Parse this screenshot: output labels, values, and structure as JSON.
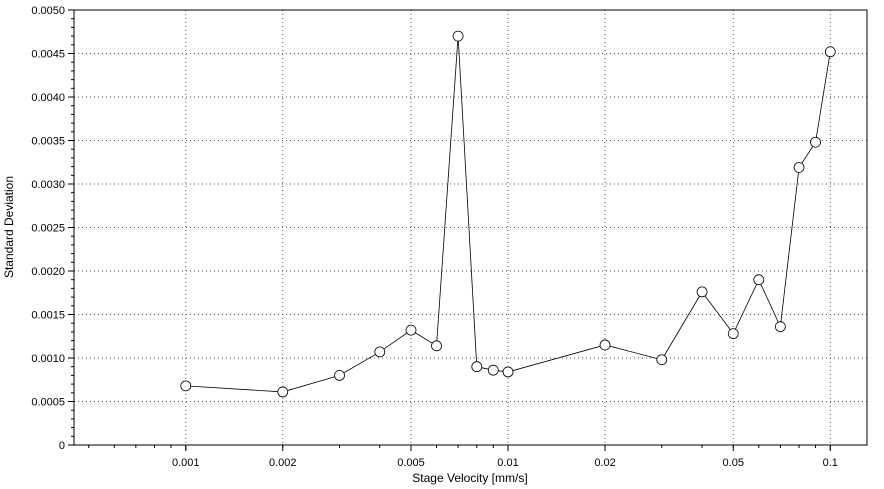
{
  "chart_data": {
    "type": "line",
    "xlabel": "Stage Velocity [mm/s]",
    "ylabel": "Standard Deviation",
    "x_scale": "log",
    "xlim": [
      0.00045,
      0.13
    ],
    "ylim": [
      0,
      0.005
    ],
    "grid": true,
    "x_ticks": [
      {
        "value": 0.001,
        "label": "0.001"
      },
      {
        "value": 0.002,
        "label": "0.002"
      },
      {
        "value": 0.005,
        "label": "0.005"
      },
      {
        "value": 0.01,
        "label": "0.01"
      },
      {
        "value": 0.02,
        "label": "0.02"
      },
      {
        "value": 0.05,
        "label": "0.05"
      },
      {
        "value": 0.1,
        "label": "0.1"
      }
    ],
    "y_ticks": [
      {
        "value": 0,
        "label": "0"
      },
      {
        "value": 0.0005,
        "label": "0.0005"
      },
      {
        "value": 0.001,
        "label": "0.0010"
      },
      {
        "value": 0.0015,
        "label": "0.0015"
      },
      {
        "value": 0.002,
        "label": "0.0020"
      },
      {
        "value": 0.0025,
        "label": "0.0025"
      },
      {
        "value": 0.003,
        "label": "0.0030"
      },
      {
        "value": 0.0035,
        "label": "0.0035"
      },
      {
        "value": 0.004,
        "label": "0.0040"
      },
      {
        "value": 0.0045,
        "label": "0.0045"
      },
      {
        "value": 0.005,
        "label": "0.0050"
      }
    ],
    "series": [
      {
        "line_color": "#000000",
        "marker": "open-circle",
        "x": [
          0.001,
          0.002,
          0.003,
          0.004,
          0.005,
          0.006,
          0.007,
          0.008,
          0.009,
          0.01,
          0.02,
          0.03,
          0.04,
          0.05,
          0.06,
          0.07,
          0.08,
          0.09,
          0.1
        ],
        "y": [
          0.00068,
          0.00061,
          0.0008,
          0.00107,
          0.00132,
          0.00114,
          0.0047,
          0.0009,
          0.00086,
          0.00084,
          0.00115,
          0.00098,
          0.00176,
          0.00128,
          0.0019,
          0.00136,
          0.00319,
          0.00348,
          0.00452
        ]
      }
    ]
  }
}
